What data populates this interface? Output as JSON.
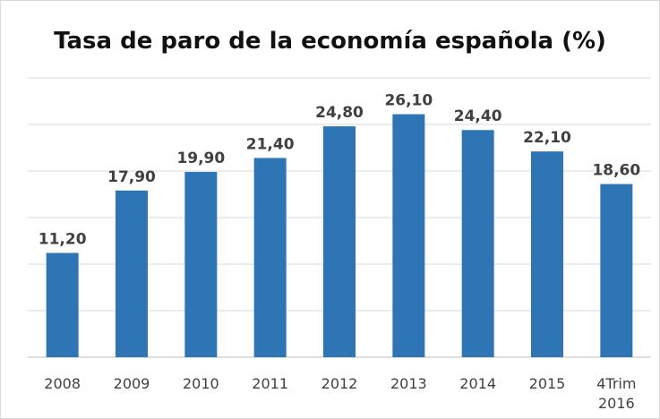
{
  "chart_data": {
    "type": "bar",
    "title": "Tasa de paro  de la economía española (%)",
    "xlabel": "",
    "ylabel": "",
    "categories": [
      "2008",
      "2009",
      "2010",
      "2011",
      "2012",
      "2013",
      "2014",
      "2015",
      "4Trim 2016"
    ],
    "values": [
      11.2,
      17.9,
      19.9,
      21.4,
      24.8,
      26.1,
      24.4,
      22.1,
      18.6
    ],
    "value_labels": [
      "11,20",
      "17,90",
      "19,90",
      "21,40",
      "24,80",
      "26,10",
      "24,40",
      "22,10",
      "18,60"
    ],
    "ylim": [
      0,
      30
    ],
    "y_gridlines": [
      5,
      10,
      15,
      20,
      25,
      30
    ],
    "grid": true,
    "legend": "none",
    "bar_color": "#2e75b6"
  }
}
